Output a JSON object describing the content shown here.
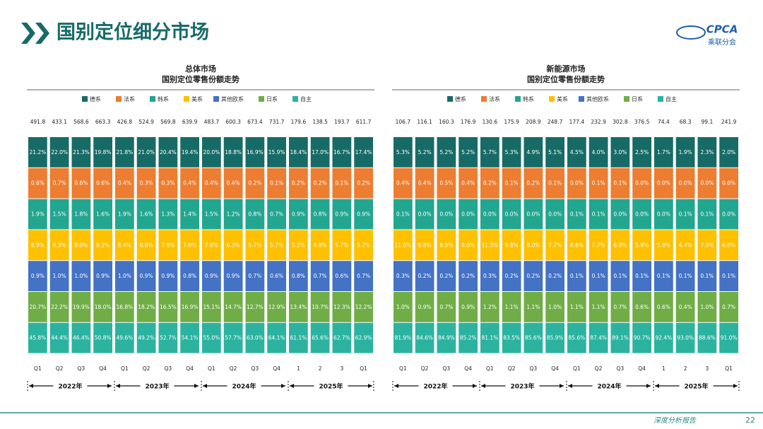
{
  "header": {
    "title": "国别定位细分市场",
    "logo": "CPCA",
    "logo_sub": "乘联分会"
  },
  "footer": {
    "text": "深度分析报告",
    "page": "22"
  },
  "chart_data": [
    {
      "type": "table",
      "title": "总体市场",
      "subtitle": "国别定位零售份额走势",
      "categories": [
        "Q1",
        "Q2",
        "Q3",
        "Q4",
        "Q1",
        "Q2",
        "Q3",
        "Q4",
        "Q1",
        "Q2",
        "Q3",
        "Q4",
        "1",
        "2",
        "3",
        "Q1"
      ],
      "groups": [
        "2022年",
        "2023年",
        "2024年",
        "2025年"
      ],
      "totals": [
        491.8,
        433.1,
        568.6,
        663.3,
        426.8,
        524.9,
        569.8,
        639.9,
        483.7,
        600.3,
        673.4,
        731.7,
        179.6,
        138.5,
        193.7,
        611.7
      ],
      "series": [
        {
          "name": "德系",
          "color": "#176b67",
          "values": [
            21.2,
            22.0,
            21.3,
            19.8,
            21.8,
            21.0,
            20.4,
            19.4,
            20.0,
            18.8,
            16.9,
            15.9,
            18.4,
            17.0,
            16.7,
            17.4
          ],
          "value_labels": [
            "21.2%",
            "22.0%",
            "21.3%",
            "19.8%",
            "21.8%",
            "21.0%",
            "20.4%",
            "19.4%",
            "20.0%",
            "18.8%",
            "16.9%",
            "15.9%",
            "18.4%",
            "17.0%",
            "16.7%",
            "17.4%"
          ]
        },
        {
          "name": "法系",
          "color": "#ed7d31",
          "values": [
            0.6,
            0.7,
            0.6,
            0.6,
            0.4,
            0.3,
            0.3,
            0.4,
            0.4,
            0.4,
            0.2,
            0.1,
            0.2,
            0.2,
            0.1,
            0.2
          ],
          "value_labels": [
            "0.6%",
            "0.7%",
            "0.6%",
            "0.6%",
            "0.4%",
            "0.3%",
            "0.3%",
            "0.4%",
            "0.4%",
            "0.4%",
            "0.2%",
            "0.1%",
            "0.2%",
            "0.2%",
            "0.1%",
            "0.2%"
          ]
        },
        {
          "name": "韩系",
          "color": "#22a68f",
          "values": [
            1.9,
            1.5,
            1.8,
            1.6,
            1.9,
            1.6,
            1.3,
            1.4,
            1.5,
            1.2,
            0.8,
            0.7,
            0.9,
            0.8,
            0.9,
            0.9
          ],
          "value_labels": [
            "1.9%",
            "1.5%",
            "1.8%",
            "1.6%",
            "1.9%",
            "1.6%",
            "1.3%",
            "1.4%",
            "1.5%",
            "1.2%",
            "0.8%",
            "0.7%",
            "0.9%",
            "0.8%",
            "0.9%",
            "0.9%"
          ]
        },
        {
          "name": "美系",
          "color": "#ffc000",
          "values": [
            8.9,
            8.3,
            8.0,
            8.2,
            8.4,
            8.8,
            7.9,
            7.0,
            7.0,
            6.3,
            5.7,
            5.7,
            5.2,
            4.9,
            5.7,
            5.7
          ],
          "value_labels": [
            "8.9%",
            "8.3%",
            "8.0%",
            "8.2%",
            "8.4%",
            "8.8%",
            "7.9%",
            "7.0%",
            "7.0%",
            "6.3%",
            "5.7%",
            "5.7%",
            "5.2%",
            "4.9%",
            "5.7%",
            "5.7%"
          ]
        },
        {
          "name": "其他欧系",
          "color": "#4472c4",
          "values": [
            0.9,
            1.0,
            1.0,
            0.9,
            1.0,
            0.9,
            0.9,
            0.8,
            0.9,
            0.9,
            0.7,
            0.6,
            0.8,
            0.7,
            0.6,
            0.7
          ],
          "value_labels": [
            "0.9%",
            "1.0%",
            "1.0%",
            "0.9%",
            "1.0%",
            "0.9%",
            "0.9%",
            "0.8%",
            "0.9%",
            "0.9%",
            "0.7%",
            "0.6%",
            "0.8%",
            "0.7%",
            "0.6%",
            "0.7%"
          ]
        },
        {
          "name": "日系",
          "color": "#70ad47",
          "values": [
            20.7,
            22.2,
            19.9,
            18.0,
            16.8,
            18.2,
            16.5,
            16.9,
            15.1,
            14.7,
            12.7,
            12.9,
            13.4,
            10.7,
            12.3,
            12.2
          ],
          "value_labels": [
            "20.7%",
            "22.2%",
            "19.9%",
            "18.0%",
            "16.8%",
            "18.2%",
            "16.5%",
            "16.9%",
            "15.1%",
            "14.7%",
            "12.7%",
            "12.9%",
            "13.4%",
            "10.7%",
            "12.3%",
            "12.2%"
          ]
        },
        {
          "name": "自主",
          "color": "#2bb3a0",
          "values": [
            45.8,
            44.4,
            46.4,
            50.8,
            49.6,
            49.2,
            52.7,
            54.1,
            55.0,
            57.7,
            63.0,
            64.1,
            61.1,
            65.6,
            62.7,
            62.9
          ],
          "value_labels": [
            "45.8%",
            "44.4%",
            "46.4%",
            "50.8%",
            "49.6%",
            "49.2%",
            "52.7%",
            "54.1%",
            "55.0%",
            "57.7%",
            "63.0%",
            "64.1%",
            "61.1%",
            "65.6%",
            "62.7%",
            "62.9%"
          ]
        }
      ]
    },
    {
      "type": "table",
      "title": "新能源市场",
      "subtitle": "国别定位零售份额走势",
      "categories": [
        "Q1",
        "Q2",
        "Q3",
        "Q4",
        "Q1",
        "Q2",
        "Q3",
        "Q4",
        "Q1",
        "Q2",
        "Q3",
        "Q4",
        "1",
        "2",
        "3",
        "Q1"
      ],
      "groups": [
        "2022年",
        "2023年",
        "2024年",
        "2025年"
      ],
      "totals": [
        106.7,
        116.1,
        160.3,
        176.9,
        130.6,
        175.9,
        208.9,
        248.7,
        177.4,
        232.9,
        302.8,
        376.5,
        74.4,
        68.3,
        99.1,
        241.9
      ],
      "series": [
        {
          "name": "德系",
          "color": "#176b67",
          "values": [
            5.3,
            5.2,
            5.2,
            5.2,
            5.7,
            5.3,
            4.9,
            5.1,
            4.5,
            4.0,
            3.0,
            2.5,
            1.7,
            1.9,
            2.3,
            2.0
          ],
          "value_labels": [
            "5.3%",
            "5.2%",
            "5.2%",
            "5.2%",
            "5.7%",
            "5.3%",
            "4.9%",
            "5.1%",
            "4.5%",
            "4.0%",
            "3.0%",
            "2.5%",
            "1.7%",
            "1.9%",
            "2.3%",
            "2.0%"
          ]
        },
        {
          "name": "法系",
          "color": "#ed7d31",
          "values": [
            0.4,
            0.4,
            0.5,
            0.4,
            0.2,
            0.1,
            0.2,
            0.1,
            0.0,
            0.1,
            0.1,
            0.0,
            0.0,
            0.0,
            0.0,
            0.0
          ],
          "value_labels": [
            "0.4%",
            "0.4%",
            "0.5%",
            "0.4%",
            "0.2%",
            "0.1%",
            "0.2%",
            "0.1%",
            "0.0%",
            "0.1%",
            "0.1%",
            "0.0%",
            "0.0%",
            "0.0%",
            "0.0%",
            "0.0%"
          ]
        },
        {
          "name": "韩系",
          "color": "#22a68f",
          "values": [
            0.1,
            0.0,
            0.0,
            0.0,
            0.0,
            0.0,
            0.0,
            0.0,
            0.1,
            0.1,
            0.0,
            0.0,
            0.0,
            0.1,
            0.1,
            0.0
          ],
          "value_labels": [
            "0.1%",
            "0.0%",
            "0.0%",
            "0.0%",
            "0.0%",
            "0.0%",
            "0.0%",
            "0.0%",
            "0.1%",
            "0.1%",
            "0.0%",
            "0.0%",
            "0.0%",
            "0.1%",
            "0.1%",
            "0.0%"
          ]
        },
        {
          "name": "美系",
          "color": "#ffc000",
          "values": [
            11.0,
            9.8,
            8.5,
            8.0,
            11.5,
            9.8,
            8.0,
            7.7,
            8.6,
            7.7,
            6.9,
            5.9,
            5.0,
            4.4,
            7.9,
            6.0
          ],
          "value_labels": [
            "11.0%",
            "9.8%",
            "8.5%",
            "8.0%",
            "11.5%",
            "9.8%",
            "8.0%",
            "7.7%",
            "8.6%",
            "7.7%",
            "6.9%",
            "5.9%",
            "5.0%",
            "4.4%",
            "7.9%",
            "6.0%"
          ]
        },
        {
          "name": "其他欧系",
          "color": "#4472c4",
          "values": [
            0.3,
            0.2,
            0.2,
            0.2,
            0.3,
            0.2,
            0.2,
            0.2,
            0.1,
            0.1,
            0.1,
            0.1,
            0.1,
            0.1,
            0.1,
            0.1
          ],
          "value_labels": [
            "0.3%",
            "0.2%",
            "0.2%",
            "0.2%",
            "0.3%",
            "0.2%",
            "0.2%",
            "0.2%",
            "0.1%",
            "0.1%",
            "0.1%",
            "0.1%",
            "0.1%",
            "0.1%",
            "0.1%",
            "0.1%"
          ]
        },
        {
          "name": "日系",
          "color": "#70ad47",
          "values": [
            1.0,
            0.9,
            0.7,
            0.9,
            1.2,
            1.1,
            1.1,
            1.0,
            1.1,
            1.1,
            0.7,
            0.6,
            0.6,
            0.4,
            1.0,
            0.7
          ],
          "value_labels": [
            "1.0%",
            "0.9%",
            "0.7%",
            "0.9%",
            "1.2%",
            "1.1%",
            "1.1%",
            "1.0%",
            "1.1%",
            "1.1%",
            "0.7%",
            "0.6%",
            "0.6%",
            "0.4%",
            "1.0%",
            "0.7%"
          ]
        },
        {
          "name": "自主",
          "color": "#2bb3a0",
          "values": [
            81.9,
            84.6,
            84.9,
            85.2,
            81.1,
            83.5,
            85.6,
            85.9,
            85.6,
            87.4,
            89.1,
            90.7,
            92.4,
            93.0,
            88.6,
            91.0
          ],
          "value_labels": [
            "81.9%",
            "84.6%",
            "84.9%",
            "85.2%",
            "81.1%",
            "83.5%",
            "85.6%",
            "85.9%",
            "85.6%",
            "87.4%",
            "89.1%",
            "90.7%",
            "92.4%",
            "93.0%",
            "88.6%",
            "91.0%"
          ]
        }
      ]
    }
  ]
}
